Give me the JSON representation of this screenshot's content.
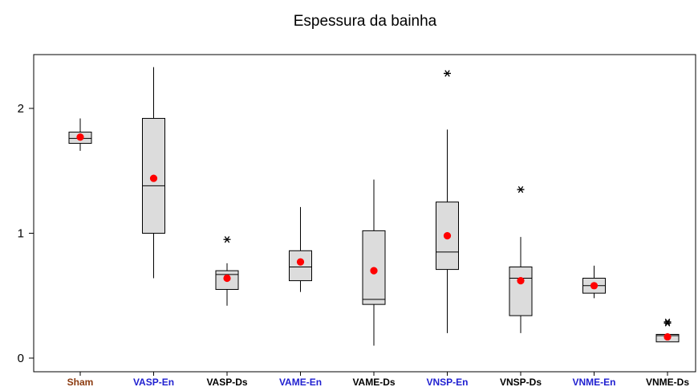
{
  "chart_data": {
    "type": "box",
    "title": "Espessura da bainha",
    "xlabel": "",
    "ylabel": "",
    "ylim": [
      -0.05,
      2.42
    ],
    "yticks": [
      0,
      1,
      2
    ],
    "grid": false,
    "legend": "none",
    "colors": {
      "box_fill": "#dcdcdc",
      "mean_marker": "#ff0000",
      "label_sham": "#8b3a0f",
      "label_blue": "#1f1fd0",
      "label_black": "#000000"
    },
    "groups": [
      {
        "label": "Sham",
        "label_color": "#8b3a0f",
        "whisker_low": 1.66,
        "q1": 1.72,
        "median": 1.76,
        "q3": 1.81,
        "whisker_high": 1.92,
        "mean": 1.77,
        "outliers": []
      },
      {
        "label": "VASP-En",
        "label_color": "#1f1fd0",
        "whisker_low": 0.64,
        "q1": 1.0,
        "median": 1.38,
        "q3": 1.92,
        "whisker_high": 2.33,
        "mean": 1.44,
        "outliers": []
      },
      {
        "label": "VASP-Ds",
        "label_color": "#000000",
        "whisker_low": 0.42,
        "q1": 0.55,
        "median": 0.67,
        "q3": 0.7,
        "whisker_high": 0.76,
        "mean": 0.64,
        "outliers": [
          0.95
        ]
      },
      {
        "label": "VAME-En",
        "label_color": "#1f1fd0",
        "whisker_low": 0.53,
        "q1": 0.62,
        "median": 0.73,
        "q3": 0.86,
        "whisker_high": 1.21,
        "mean": 0.77,
        "outliers": []
      },
      {
        "label": "VAME-Ds",
        "label_color": "#000000",
        "whisker_low": 0.1,
        "q1": 0.43,
        "median": 0.47,
        "q3": 1.02,
        "whisker_high": 1.43,
        "mean": 0.7,
        "outliers": []
      },
      {
        "label": "VNSP-En",
        "label_color": "#1f1fd0",
        "whisker_low": 0.2,
        "q1": 0.71,
        "median": 0.85,
        "q3": 1.25,
        "whisker_high": 1.83,
        "mean": 0.98,
        "outliers": [
          2.28
        ]
      },
      {
        "label": "VNSP-Ds",
        "label_color": "#000000",
        "whisker_low": 0.2,
        "q1": 0.34,
        "median": 0.64,
        "q3": 0.73,
        "whisker_high": 0.97,
        "mean": 0.62,
        "outliers": [
          1.35
        ]
      },
      {
        "label": "VNME-En",
        "label_color": "#1f1fd0",
        "whisker_low": 0.48,
        "q1": 0.52,
        "median": 0.58,
        "q3": 0.64,
        "whisker_high": 0.74,
        "mean": 0.58,
        "outliers": []
      },
      {
        "label": "VNME-Ds",
        "label_color": "#000000",
        "whisker_low": 0.13,
        "q1": 0.13,
        "median": 0.18,
        "q3": 0.19,
        "whisker_high": 0.2,
        "mean": 0.17,
        "outliers": [
          0.29,
          0.28
        ]
      }
    ]
  }
}
